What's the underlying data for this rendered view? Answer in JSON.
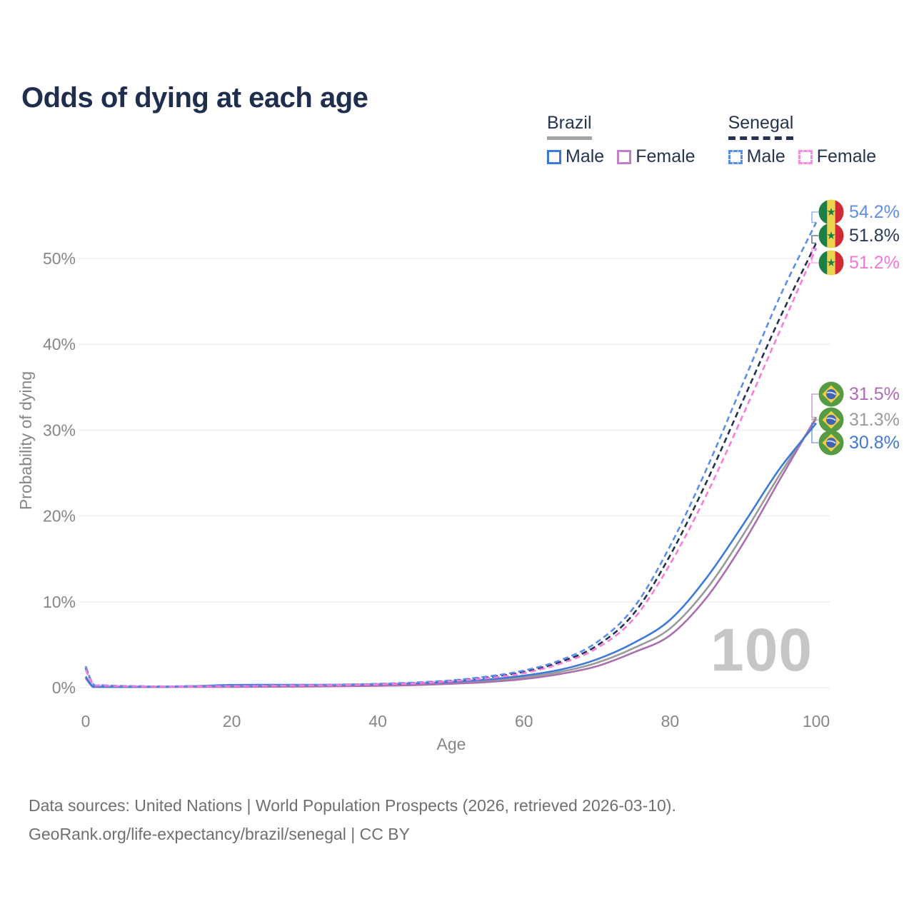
{
  "header": {
    "title": "Odds of dying at each age"
  },
  "legend": {
    "groups": [
      {
        "id": "brazil",
        "label": "Brazil",
        "line_style": "solid",
        "line_color": "#a3a3a3",
        "items": [
          {
            "label": "Male",
            "color": "#3d79d8",
            "style": "solid"
          },
          {
            "label": "Female",
            "color": "#c07fc6",
            "style": "solid"
          }
        ]
      },
      {
        "id": "senegal",
        "label": "Senegal",
        "line_style": "dashed",
        "line_color": "#233250",
        "items": [
          {
            "label": "Male",
            "color": "#5b8def",
            "style": "dashed"
          },
          {
            "label": "Female",
            "color": "#f98ae0",
            "style": "dashed"
          }
        ]
      }
    ]
  },
  "chart_data": {
    "type": "line",
    "title": "Odds of dying at each age",
    "xlabel": "Age",
    "ylabel": "Probability of dying",
    "xlim": [
      0,
      100
    ],
    "ylim": [
      0,
      57
    ],
    "x_ticks": [
      0,
      20,
      40,
      60,
      80,
      100
    ],
    "y_ticks": [
      "0%",
      "10%",
      "20%",
      "30%",
      "40%",
      "50%"
    ],
    "grid": "horizontal",
    "legend_position": "top-right",
    "watermark": "100",
    "ages": [
      0,
      1,
      2,
      3,
      5,
      10,
      15,
      20,
      25,
      30,
      35,
      40,
      45,
      50,
      55,
      60,
      65,
      70,
      75,
      80,
      85,
      90,
      95,
      100
    ],
    "series": [
      {
        "id": "senegal-male",
        "country": "Senegal",
        "sex": "Male",
        "style": "dashed",
        "color": "#5b8def",
        "label_color": "#5d8ee8",
        "end_label": "54.2%",
        "end_value": 54.2,
        "flag": "senegal",
        "values": [
          2.5,
          0.45,
          0.3,
          0.25,
          0.2,
          0.15,
          0.18,
          0.22,
          0.26,
          0.3,
          0.36,
          0.45,
          0.6,
          0.85,
          1.3,
          2.0,
          3.2,
          5.3,
          9.3,
          16.5,
          25.5,
          35.5,
          45.5,
          54.2
        ]
      },
      {
        "id": "senegal-both",
        "country": "Senegal",
        "sex": "Both sexes",
        "style": "dashed",
        "color": "#233250",
        "label_color": "#2b3a55",
        "end_label": "51.8%",
        "end_value": 51.8,
        "flag": "senegal",
        "values": [
          2.3,
          0.42,
          0.28,
          0.23,
          0.18,
          0.14,
          0.16,
          0.2,
          0.24,
          0.28,
          0.33,
          0.42,
          0.55,
          0.8,
          1.2,
          1.85,
          3.0,
          4.9,
          8.6,
          15.4,
          24.0,
          33.5,
          43.0,
          51.8
        ]
      },
      {
        "id": "senegal-female",
        "country": "Senegal",
        "sex": "Female",
        "style": "dashed",
        "color": "#f97cdb",
        "label_color": "#f576d8",
        "end_label": "51.2%",
        "end_value": 51.2,
        "flag": "senegal",
        "values": [
          2.1,
          0.4,
          0.26,
          0.21,
          0.17,
          0.13,
          0.15,
          0.18,
          0.22,
          0.26,
          0.3,
          0.38,
          0.5,
          0.75,
          1.1,
          1.7,
          2.8,
          4.6,
          8.0,
          14.4,
          22.5,
          31.8,
          41.5,
          51.2
        ]
      },
      {
        "id": "brazil-female",
        "country": "Brazil",
        "sex": "Female",
        "style": "solid",
        "color": "#a96fae",
        "label_color": "#b168b8",
        "end_label": "31.5%",
        "end_value": 31.5,
        "flag": "brazil",
        "values": [
          1.1,
          0.08,
          0.05,
          0.045,
          0.04,
          0.045,
          0.07,
          0.09,
          0.11,
          0.13,
          0.17,
          0.22,
          0.3,
          0.45,
          0.65,
          1.0,
          1.6,
          2.5,
          4.1,
          6.1,
          10.5,
          16.8,
          24.2,
          31.5
        ]
      },
      {
        "id": "brazil-both",
        "country": "Brazil",
        "sex": "Both sexes",
        "style": "solid",
        "color": "#9a9a9a",
        "label_color": "#9b9b9b",
        "end_label": "31.3%",
        "end_value": 31.3,
        "flag": "brazil",
        "values": [
          1.2,
          0.09,
          0.06,
          0.05,
          0.045,
          0.05,
          0.12,
          0.2,
          0.22,
          0.23,
          0.25,
          0.3,
          0.4,
          0.55,
          0.8,
          1.2,
          1.85,
          2.9,
          4.6,
          6.9,
          11.5,
          17.8,
          24.8,
          31.3
        ]
      },
      {
        "id": "brazil-male",
        "country": "Brazil",
        "sex": "Male",
        "style": "solid",
        "color": "#3d79d8",
        "label_color": "#4079d6",
        "end_label": "30.8%",
        "end_value": 30.8,
        "flag": "brazil",
        "values": [
          1.3,
          0.1,
          0.07,
          0.06,
          0.05,
          0.06,
          0.18,
          0.32,
          0.33,
          0.33,
          0.34,
          0.4,
          0.5,
          0.68,
          0.95,
          1.4,
          2.1,
          3.3,
          5.2,
          7.9,
          12.8,
          19.0,
          25.5,
          30.8
        ]
      }
    ]
  },
  "footer": {
    "line1": "Data sources: United Nations | World Population Prospects (2026, retrieved 2026-03-10).",
    "line2": "GeoRank.org/life-expectancy/brazil/senegal | CC BY"
  }
}
